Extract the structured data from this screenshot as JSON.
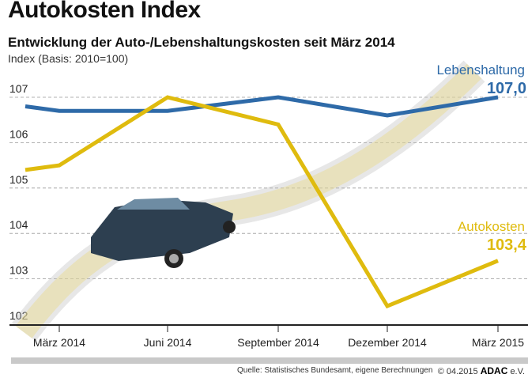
{
  "header": {
    "title": "Autokosten Index",
    "subtitle": "Entwicklung der Auto-/Lebenshaltungskosten seit März 2014",
    "unit": "Index (Basis: 2010=100)"
  },
  "chart_data": {
    "type": "line",
    "title": "Autokosten Index",
    "subtitle": "Entwicklung der Auto-/Lebenshaltungskosten seit März 2014",
    "ylabel": "Index (Basis: 2010=100)",
    "ylim": [
      102,
      107
    ],
    "yticks": [
      "102",
      "103",
      "104",
      "105",
      "106",
      "107"
    ],
    "grid": true,
    "categories": [
      "",
      "März 2014",
      "Juni 2014",
      "September 2014",
      "Dezember 2014",
      "März 2015"
    ],
    "series": [
      {
        "name": "Lebenshaltung",
        "end_label": "107,0",
        "color": "#2e6aa8",
        "values": [
          106.8,
          106.7,
          106.7,
          107.0,
          106.6,
          107.0
        ]
      },
      {
        "name": "Autokosten",
        "end_label": "103,4",
        "color": "#dfbb0e",
        "values": [
          105.4,
          105.5,
          107.0,
          106.4,
          102.4,
          103.4
        ]
      }
    ],
    "legend": "inline-right"
  },
  "footer": {
    "source": "Quelle: Statistisches Bundesamt, eigene Berechnungen",
    "copyright": "© 04.2015",
    "brand": "ADAC",
    "brand_suffix": "e.V."
  }
}
